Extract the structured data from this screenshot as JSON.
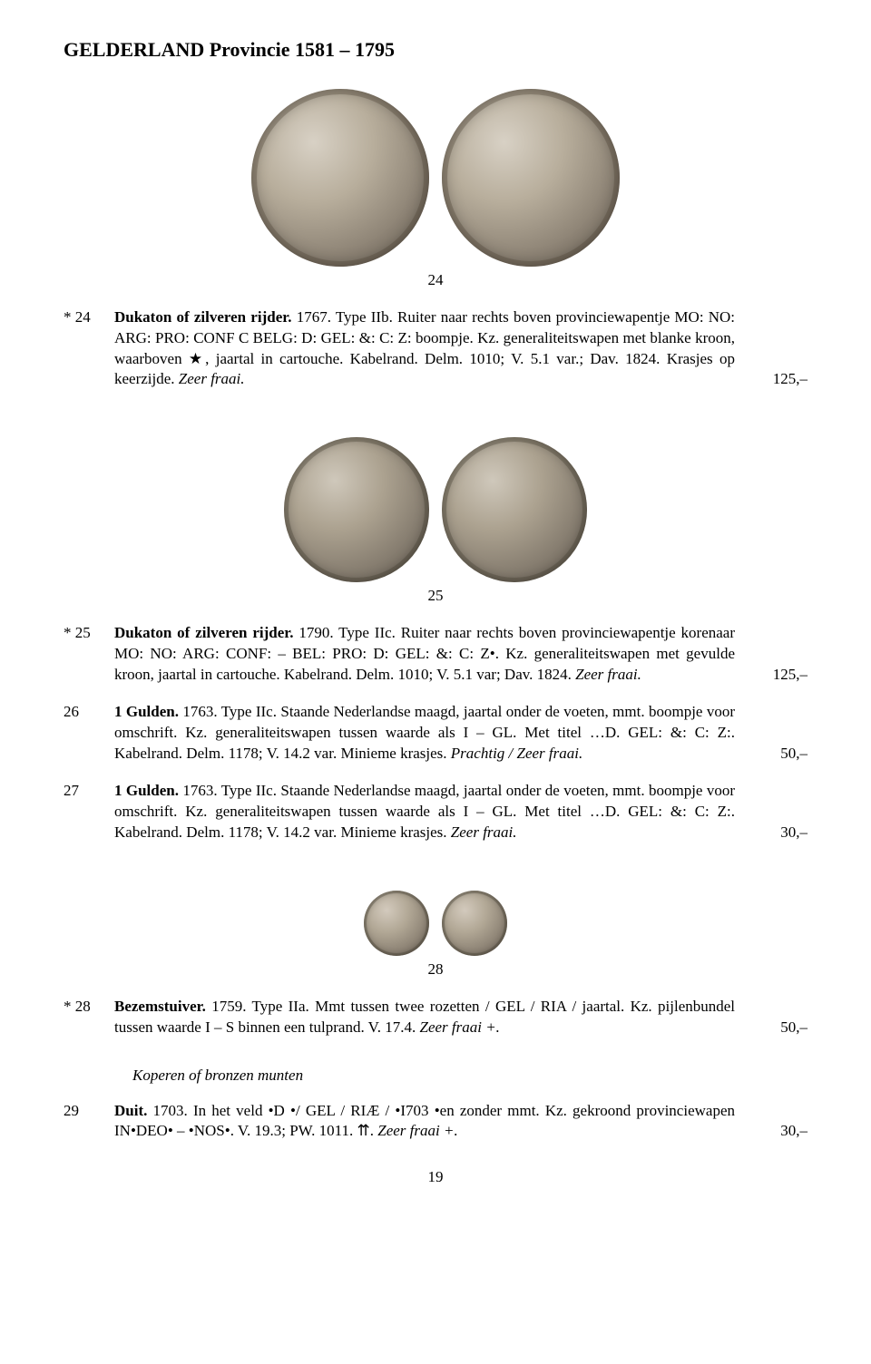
{
  "page_title": "GELDERLAND Provincie 1581 – 1795",
  "figures": {
    "fig24": "24",
    "fig25": "25",
    "fig28": "28"
  },
  "entries": [
    {
      "lot": "* 24",
      "title": "Dukaton of zilveren rijder.",
      "year_type": "1767. Type IIb.",
      "body": " Ruiter naar rechts boven provinciewapentje MO: NO: ARG: PRO: CONF C BELG: D: GEL: &: C: Z: boompje. Kz. generaliteitswapen met blanke kroon, waarboven ★, jaartal in cartouche. Kabelrand. Delm. 1010; V. 5.1 var.; Dav. 1824. Krasjes op keerzijde. ",
      "grade": "Zeer fraai.",
      "price": "125,–"
    },
    {
      "lot": "* 25",
      "title": "Dukaton of zilveren rijder.",
      "year_type": "1790. Type IIc.",
      "body": " Ruiter naar rechts boven provinciewapentje korenaar MO: NO: ARG: CONF: – BEL: PRO: D: GEL: &: C: Z•. Kz. generaliteitswapen met gevulde kroon, jaartal in cartouche. Kabelrand. Delm. 1010; V. 5.1 var; Dav. 1824. ",
      "grade": "Zeer fraai.",
      "price": "125,–"
    },
    {
      "lot": "26",
      "title": "1 Gulden.",
      "year_type": "1763. Type IIc.",
      "body": " Staande Nederlandse maagd, jaartal onder de voeten, mmt. boompje voor omschrift. Kz. generaliteitswapen tussen waarde als I – GL. Met titel …D. GEL: &: C: Z:. Kabelrand. Delm. 1178; V. 14.2 var. Minieme krasjes. ",
      "grade": "Prachtig / Zeer fraai.",
      "price": "50,–"
    },
    {
      "lot": "27",
      "title": "1 Gulden.",
      "year_type": "1763. Type IIc.",
      "body": " Staande Nederlandse maagd, jaartal onder de voeten, mmt. boompje voor omschrift. Kz. generaliteitswapen tussen waarde als I – GL. Met titel …D. GEL: &: C: Z:. Kabelrand. Delm. 1178; V. 14.2 var. Minieme krasjes. ",
      "grade": "Zeer fraai.",
      "price": "30,–"
    },
    {
      "lot": "* 28",
      "title": "Bezemstuiver.",
      "year_type": "1759. Type IIa.",
      "body": " Mmt tussen twee rozetten / GEL / RIA / jaartal. Kz. pijlenbundel tussen waarde I – S binnen een tulprand. V. 17.4. ",
      "grade": "Zeer fraai +.",
      "price": "50,–"
    },
    {
      "lot": "29",
      "title": "Duit.",
      "year_type": "1703.",
      "body": " In het veld •D •/ GEL / RIÆ / •I703 •en zonder mmt. Kz. gekroond provinciewapen IN•DEO• – •NOS•. V. 19.3; PW. 1011. ⇈. ",
      "grade": "Zeer fraai +.",
      "price": "30,–"
    }
  ],
  "section_heading": "Koperen of bronzen munten",
  "page_number": "19"
}
